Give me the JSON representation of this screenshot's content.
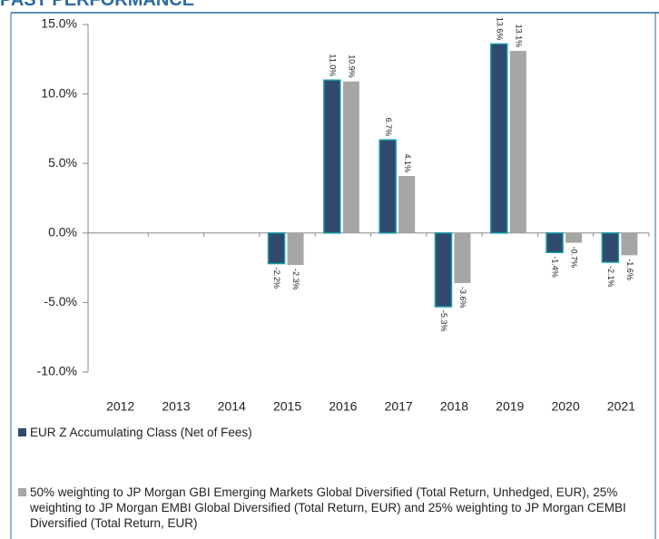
{
  "chart_data": {
    "type": "bar",
    "title": "PAST PERFORMANCE",
    "categories": [
      "2012",
      "2013",
      "2014",
      "2015",
      "2016",
      "2017",
      "2018",
      "2019",
      "2020",
      "2021"
    ],
    "series": [
      {
        "name": "EUR Z Accumulating Class (Net of Fees)",
        "color": "#2f4a6d",
        "values": [
          null,
          null,
          null,
          -2.2,
          11.0,
          6.7,
          -5.3,
          13.6,
          -1.4,
          -2.1
        ],
        "value_labels": [
          null,
          null,
          null,
          "-2.2%",
          "11.0%",
          "6.7%",
          "-5.3%",
          "13.6%",
          "-1.4%",
          "-2.1%"
        ]
      },
      {
        "name": "50% weighting to JP Morgan GBI Emerging Markets Global Diversified (Total Return, Unhedged, EUR), 25% weighting to JP Morgan EMBI Global Diversified (Total Return, EUR) and 25% weighting to JP Morgan CEMBI Diversified (Total Return, EUR)",
        "color": "#a6a6a6",
        "values": [
          null,
          null,
          null,
          -2.3,
          10.9,
          4.1,
          -3.6,
          13.1,
          -0.7,
          -1.6
        ],
        "value_labels": [
          null,
          null,
          null,
          "-2.3%",
          "10.9%",
          "4.1%",
          "-3.6%",
          "13.1%",
          "-0.7%",
          "-1.6%"
        ]
      }
    ],
    "ylim": [
      -10,
      15
    ],
    "yticks": [
      {
        "value": -10,
        "label": "-10.0%"
      },
      {
        "value": -5,
        "label": "-5.0%"
      },
      {
        "value": 0,
        "label": "0.0%"
      },
      {
        "value": 5,
        "label": "5.0%"
      },
      {
        "value": 10,
        "label": "10.0%"
      },
      {
        "value": 15,
        "label": "15.0%"
      }
    ]
  }
}
